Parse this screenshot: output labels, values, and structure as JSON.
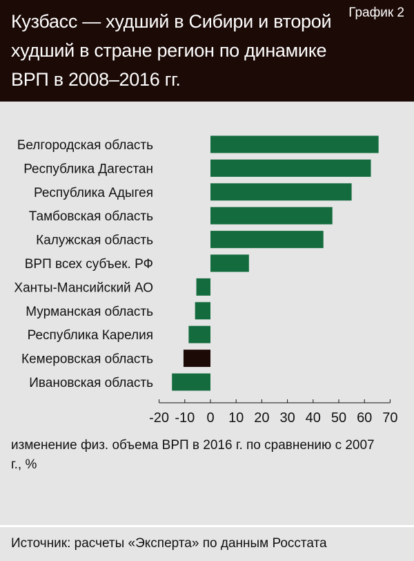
{
  "header": {
    "title": "Кузбасс — худший в Сибири и второй худший в стране регион по динамике ВРП в 2008–2016 гг.",
    "chart_number": "График 2"
  },
  "caption": "изменение физ. объема ВРП в 2016 г. по сравнению с 2007 г., %",
  "source": "Источник: расчеты «Эксперта» по данным Росстата",
  "colors": {
    "header_bg": "#1c0a06",
    "background": "#e5e5e5",
    "bar_default": "#146c3e",
    "bar_highlight": "#1c0a06"
  },
  "chart_data": {
    "type": "bar",
    "orientation": "horizontal",
    "title": "",
    "xlabel": "изменение физ. объема ВРП в 2016 г. по сравнению с 2007 г., %",
    "ylabel": "",
    "xlim": [
      -20,
      70
    ],
    "xticks": [
      -20,
      -10,
      0,
      10,
      20,
      30,
      40,
      50,
      60,
      70
    ],
    "grid": false,
    "categories": [
      "Белгородская область",
      "Республика Дагестан",
      "Республика Адыгея",
      "Тамбовская область",
      "Калужская область",
      "ВРП всех субъек. РФ",
      "Ханты-Мансийский АО",
      "Мурманская область",
      "Республика Карелия",
      "Кемеровская область",
      "Ивановская область"
    ],
    "values": [
      65.5,
      62.5,
      55,
      47.5,
      44,
      15,
      -5.5,
      -6,
      -8.5,
      -10.5,
      -15
    ],
    "highlight": "Кемеровская область"
  }
}
